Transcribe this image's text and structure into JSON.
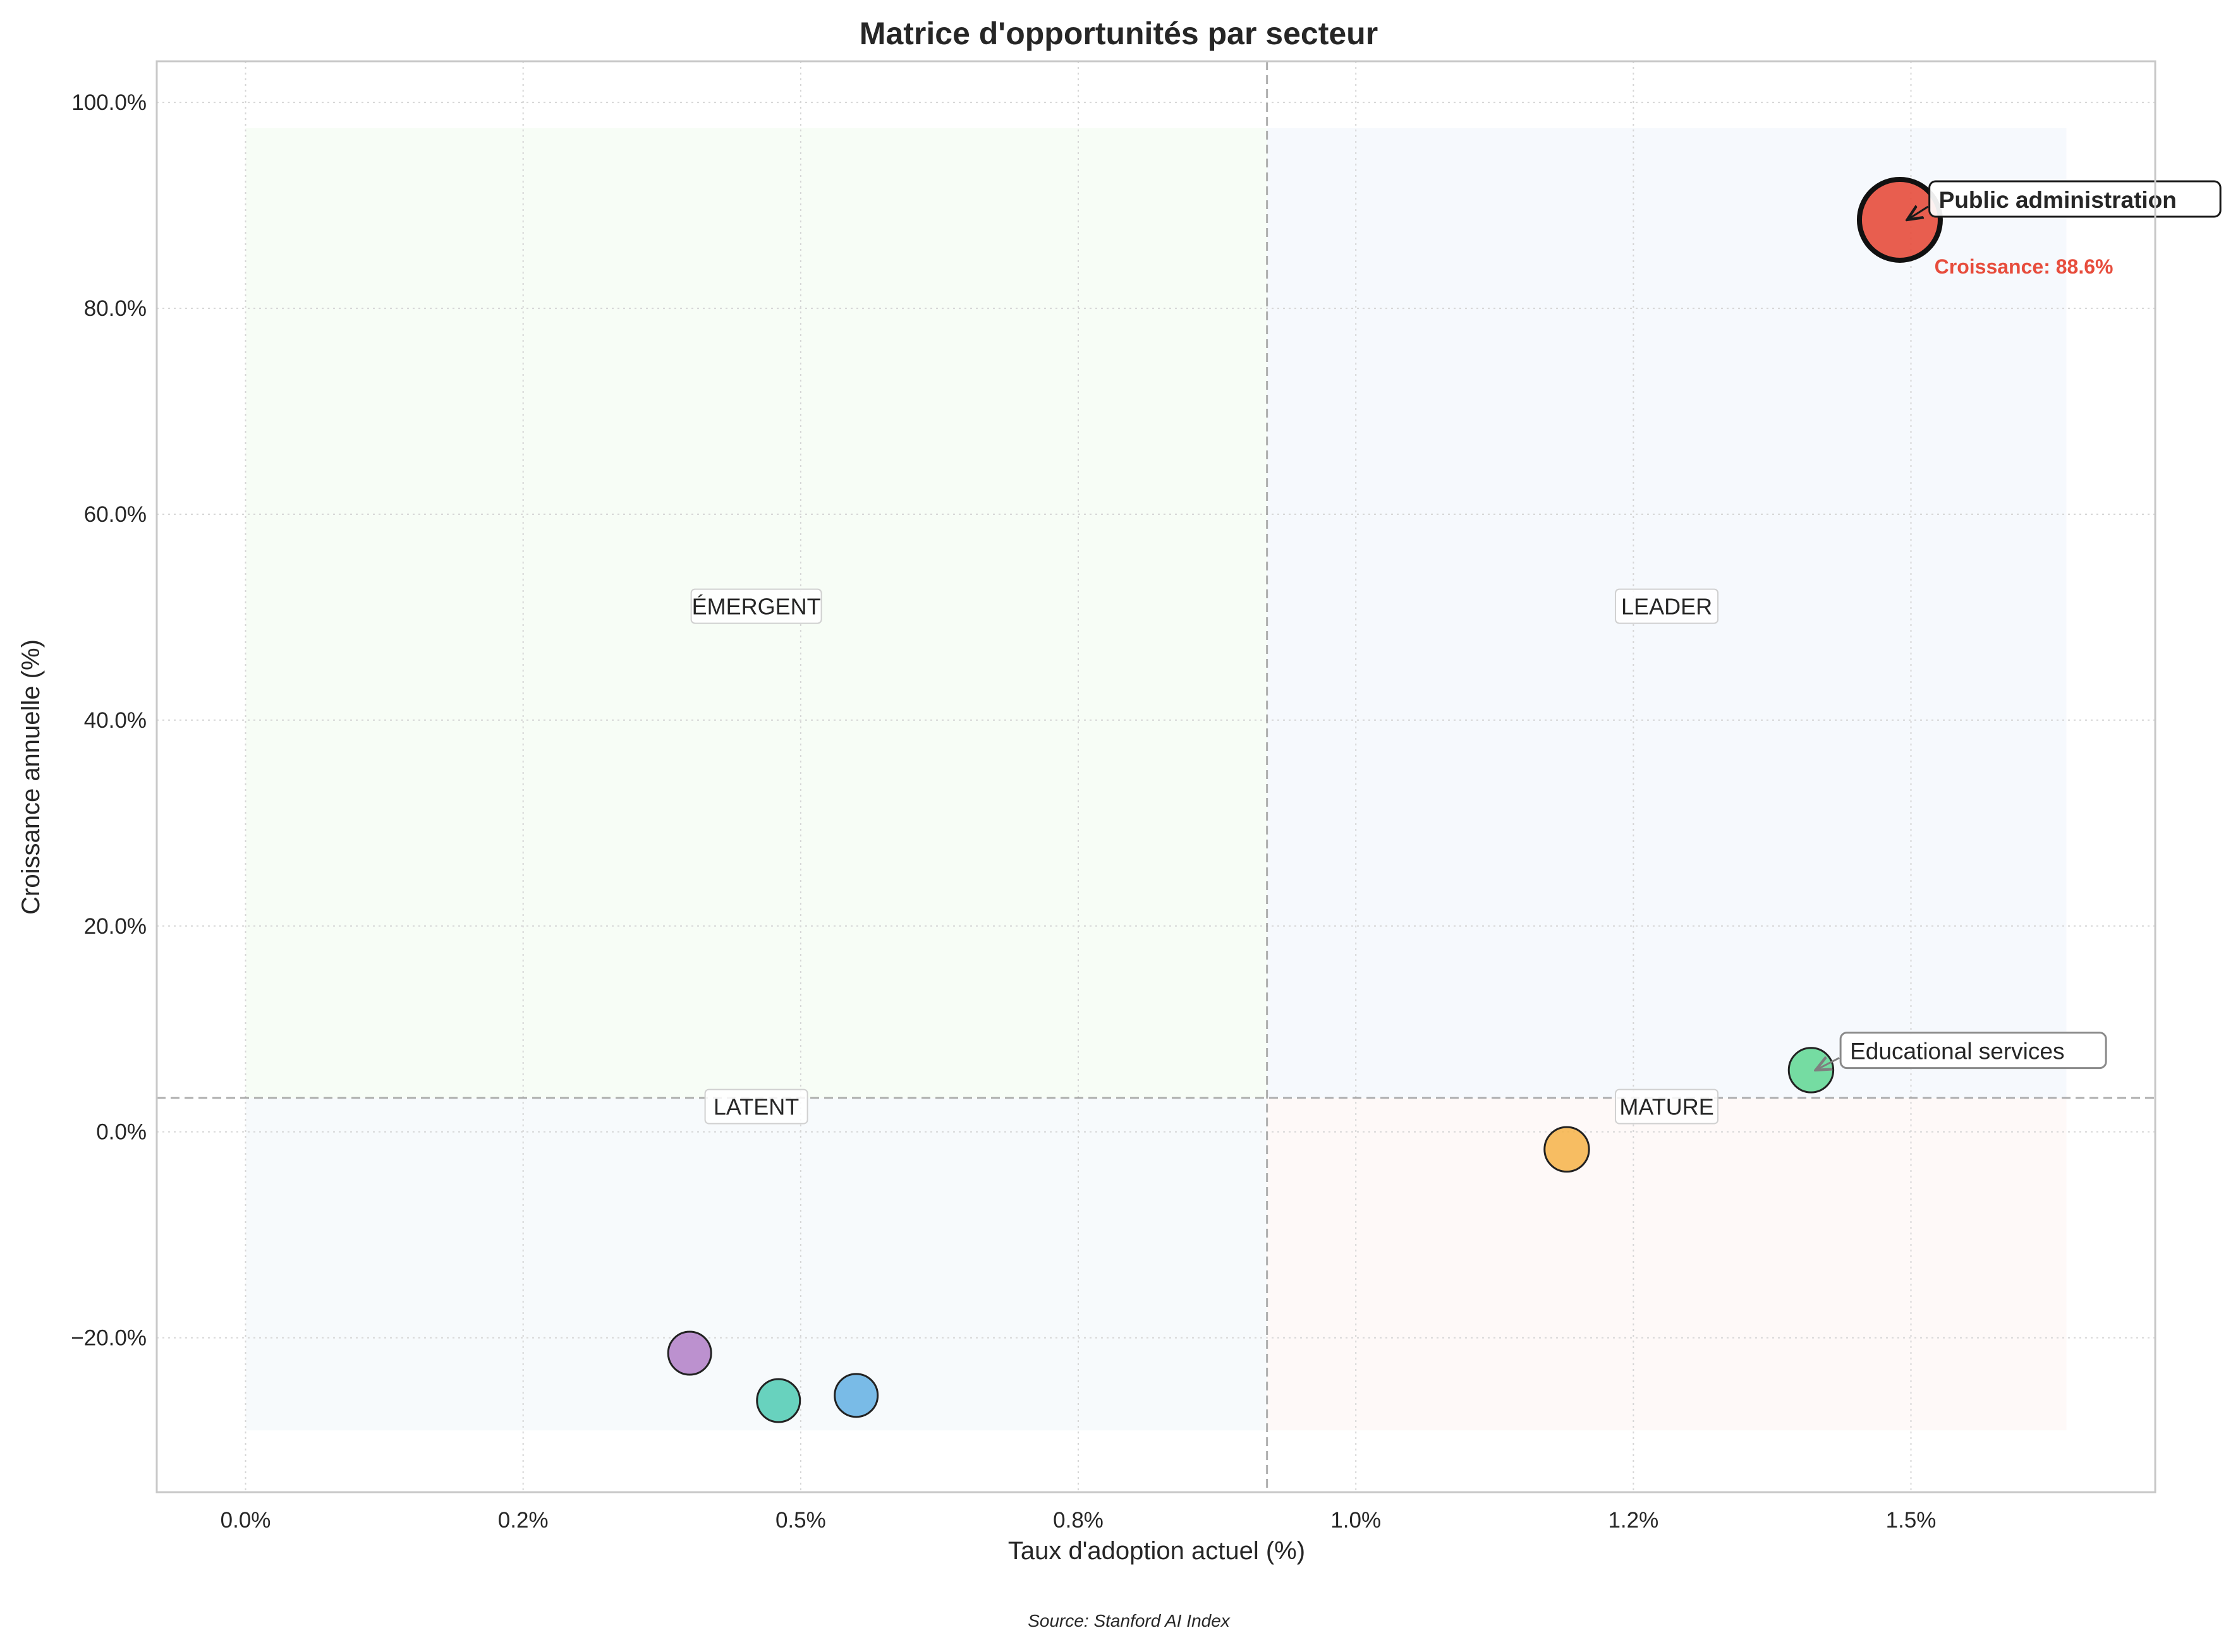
{
  "chart_data": {
    "type": "scatter",
    "title": "Matrice d'opportunités par secteur",
    "xlabel": "Taux d'adoption actuel (%)",
    "ylabel": "Croissance annuelle (%)",
    "xlim": [
      -0.0008,
      0.0172
    ],
    "ylim": [
      -0.35,
      1.04
    ],
    "x_ticks": [
      0,
      0.0025,
      0.005,
      0.0075,
      0.01,
      0.0125,
      0.015
    ],
    "x_tick_labels": [
      "0.0%",
      "0.2%",
      "0.5%",
      "0.8%",
      "1.0%",
      "1.2%",
      "1.5%"
    ],
    "y_ticks": [
      -0.2,
      0,
      0.2,
      0.4,
      0.6,
      0.8,
      1.0
    ],
    "y_tick_labels": [
      "−20.0%",
      "0.0%",
      "20.0%",
      "40.0%",
      "60.0%",
      "80.0%",
      "100.0%"
    ],
    "grid": true,
    "divider_x": 0.0092,
    "divider_y": 0.033,
    "quadrants": [
      {
        "label": "ÉMERGENT",
        "x0": 0,
        "x1": 0.0092,
        "y0": 0.033,
        "y1": 0.975,
        "color": "#eefaea",
        "label_x": 0.0046,
        "label_y": 0.51
      },
      {
        "label": "LEADER",
        "x0": 0.0092,
        "x1": 0.0164,
        "y0": 0.033,
        "y1": 0.975,
        "color": "#eaf2fa",
        "label_x": 0.0128,
        "label_y": 0.51
      },
      {
        "label": "LATENT",
        "x0": 0,
        "x1": 0.0092,
        "y0": -0.29,
        "y1": 0.033,
        "color": "#eef4f9",
        "label_x": 0.0046,
        "label_y": 0.024
      },
      {
        "label": "MATURE",
        "x0": 0.0092,
        "x1": 0.0164,
        "y0": -0.29,
        "y1": 0.033,
        "color": "#fcf2f0",
        "label_x": 0.0128,
        "label_y": 0.024
      }
    ],
    "points": [
      {
        "x": 0.0149,
        "y": 0.886,
        "size": 1,
        "color": "#e74c3c",
        "highlight": true
      },
      {
        "x": 0.0141,
        "y": 0.06,
        "size": 0.32,
        "color": "#58d68d",
        "highlight": false
      },
      {
        "x": 0.0119,
        "y": -0.017,
        "size": 0.32,
        "color": "#f5b041",
        "highlight": false
      },
      {
        "x": 0.004,
        "y": -0.215,
        "size": 0.29,
        "color": "#af7ac5",
        "highlight": false
      },
      {
        "x": 0.0048,
        "y": -0.261,
        "size": 0.29,
        "color": "#48c9b0",
        "highlight": false
      },
      {
        "x": 0.0055,
        "y": -0.256,
        "size": 0.29,
        "color": "#5dade2",
        "highlight": false
      }
    ],
    "annotations": [
      {
        "text": "Public administration",
        "bold": true,
        "point": 0,
        "text_x": 0.0152,
        "text_y": 0.905
      },
      {
        "text": "Educational services",
        "bold": false,
        "point": 1,
        "text_x": 0.0144,
        "text_y": 0.078
      }
    ],
    "growth_note": {
      "text": "Croissance: 88.6%",
      "color": "#e74c3c",
      "x": 0.0152,
      "y": 0.84
    },
    "source": "Source: Stanford AI Index"
  }
}
